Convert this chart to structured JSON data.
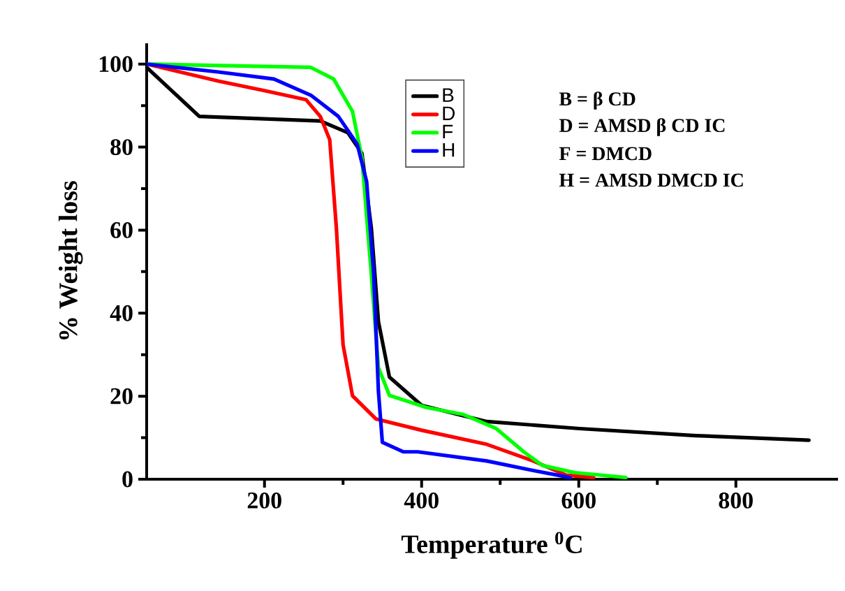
{
  "chart_data": {
    "type": "line",
    "xlabel": "Temperature $^{0}$C",
    "ylabel": "% Weight loss",
    "xlim": [
      50,
      930
    ],
    "ylim": [
      0,
      105
    ],
    "xticks": [
      200,
      400,
      600,
      800
    ],
    "yticks": [
      0,
      20,
      40,
      60,
      80,
      100
    ],
    "legend": "top",
    "line_style": "solid",
    "series": [
      {
        "name": "B",
        "color": "#000000",
        "x": [
          50,
          117,
          271,
          306,
          324,
          336,
          345,
          359,
          400,
          483,
          601,
          749,
          893
        ],
        "values": [
          99.2,
          87.4,
          86.3,
          83.5,
          78.5,
          60.5,
          38,
          24.6,
          17.8,
          13.9,
          12.2,
          10.5,
          9.4
        ]
      },
      {
        "name": "D",
        "color": "#ff0000",
        "x": [
          50,
          141,
          200,
          253,
          271,
          283,
          291.5,
          300,
          312,
          342,
          400,
          483,
          542,
          584,
          619
        ],
        "values": [
          100,
          95.9,
          93.6,
          91.4,
          87.4,
          81.8,
          60.5,
          32.4,
          20.1,
          14.5,
          11.8,
          8.4,
          4.4,
          1,
          0.4
        ]
      },
      {
        "name": "F",
        "color": "#00ff00",
        "x": [
          50,
          259,
          288,
          312,
          324,
          336,
          345,
          359,
          406,
          453,
          495,
          530,
          554,
          595,
          660
        ],
        "values": [
          100,
          99.2,
          96.4,
          88.6,
          77.4,
          49.3,
          26.9,
          20.2,
          17.3,
          15.6,
          12.2,
          6.6,
          3.3,
          1.6,
          0.4
        ]
      },
      {
        "name": "H",
        "color": "#0000ff",
        "x": [
          50,
          141,
          212,
          259,
          294,
          318,
          330,
          339,
          345,
          350,
          377,
          395,
          483,
          542,
          589
        ],
        "values": [
          100,
          98.1,
          96.4,
          92.5,
          87.4,
          80.7,
          71.7,
          49.3,
          21.2,
          8.9,
          6.6,
          6.6,
          4.4,
          2.1,
          0.4
        ]
      }
    ],
    "annotations": [
      "B = β CD",
      "D = AMSD β CD IC",
      "F = DMCD",
      "H = AMSD DMCD IC"
    ]
  }
}
